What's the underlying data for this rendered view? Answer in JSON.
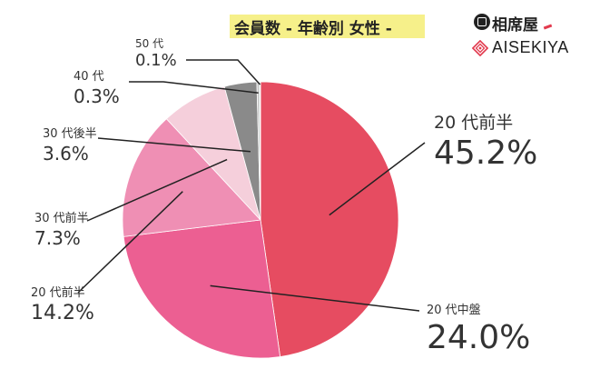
{
  "title": "会員数 - 年齢別 女性 -",
  "brand": {
    "name_jp": "相席屋",
    "name_en": "AISEKIYA",
    "accent_color": "#e23a4e",
    "icon": "diamond-logo-icon"
  },
  "chart_data": {
    "type": "pie",
    "title": "会員数 - 年齢別 女性 -",
    "slices": [
      {
        "label": "20 代前半",
        "value": 45.2,
        "display": "45.2%",
        "color": "#e64c61"
      },
      {
        "label": "20 代中盤",
        "value": 24.0,
        "display": "24.0%",
        "color": "#ec5f92"
      },
      {
        "label": "20 代前半",
        "value": 14.2,
        "display": "14.2%",
        "color": "#ef8fb4"
      },
      {
        "label": "30 代前半",
        "value": 7.3,
        "display": "7.3%",
        "color": "#f5cfdb"
      },
      {
        "label": "30 代後半",
        "value": 3.6,
        "display": "3.6%",
        "color": "#8a8a8a"
      },
      {
        "label": "40 代",
        "value": 0.3,
        "display": "0.3%",
        "color": "#c5c5c5"
      },
      {
        "label": "50 代",
        "value": 0.1,
        "display": "0.1%",
        "color": "#e0e0e0"
      }
    ],
    "legend": "none"
  }
}
